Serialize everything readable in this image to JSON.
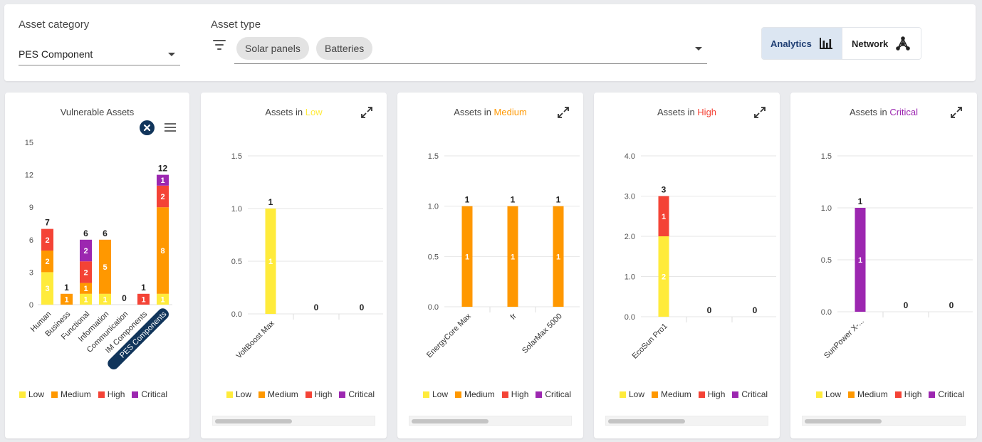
{
  "filters": {
    "asset_category": {
      "label": "Asset category",
      "value": "PES Component"
    },
    "asset_type": {
      "label": "Asset type",
      "chips": [
        "Solar panels",
        "Batteries"
      ]
    },
    "view_toggle": {
      "analytics": "Analytics",
      "network": "Network"
    }
  },
  "legend": [
    {
      "label": "Low",
      "color": "#ffeb3b"
    },
    {
      "label": "Medium",
      "color": "#ff9800"
    },
    {
      "label": "High",
      "color": "#f44336"
    },
    {
      "label": "Critical",
      "color": "#9c27b0"
    }
  ],
  "colors": {
    "low": "#ffeb3b",
    "medium": "#ff9800",
    "high": "#f44336",
    "critical": "#9c27b0",
    "accent": "#11355b"
  },
  "cards": [
    {
      "title_prefix": "Vulnerable Assets",
      "title_level": "",
      "title_color": "#444444",
      "chart_data": {
        "type": "bar",
        "stacked": true,
        "title": "Vulnerable Assets",
        "categories": [
          "Human",
          "Business",
          "Functional",
          "Information",
          "Communication",
          "IM Components",
          "PES Components"
        ],
        "selected_category": "PES Components",
        "series": [
          {
            "name": "Low",
            "values": [
              3,
              0,
              1,
              1,
              0,
              0,
              1
            ]
          },
          {
            "name": "Medium",
            "values": [
              2,
              1,
              1,
              5,
              0,
              0,
              8
            ]
          },
          {
            "name": "High",
            "values": [
              2,
              0,
              2,
              0,
              0,
              1,
              2
            ]
          },
          {
            "name": "Critical",
            "values": [
              0,
              0,
              2,
              0,
              0,
              0,
              1
            ]
          }
        ],
        "totals": [
          7,
          1,
          6,
          6,
          0,
          1,
          12
        ],
        "ylim": [
          0,
          15
        ],
        "yticks": [
          "0",
          "3",
          "6",
          "9",
          "12",
          "15"
        ]
      }
    },
    {
      "title_prefix": "Assets in ",
      "title_level": "Low",
      "title_color": "#ffeb3b",
      "chart_data": {
        "type": "bar",
        "stacked": true,
        "categories": [
          "VoltBoost Max",
          "",
          ""
        ],
        "series": [
          {
            "name": "Low",
            "values": [
              1,
              0,
              0
            ]
          }
        ],
        "totals": [
          1,
          0,
          0
        ],
        "ylim": [
          0,
          1.5
        ],
        "yticks": [
          "0.0",
          "0.5",
          "1.0",
          "1.5"
        ]
      }
    },
    {
      "title_prefix": "Assets in ",
      "title_level": "Medium",
      "title_color": "#ff9800",
      "chart_data": {
        "type": "bar",
        "stacked": true,
        "categories": [
          "EnergyCore Max",
          "fr",
          "SolarMax 5000"
        ],
        "series": [
          {
            "name": "Medium",
            "values": [
              1,
              1,
              1
            ]
          }
        ],
        "totals": [
          1,
          1,
          1
        ],
        "ylim": [
          0,
          1.5
        ],
        "yticks": [
          "0.0",
          "0.5",
          "1.0",
          "1.5"
        ]
      }
    },
    {
      "title_prefix": "Assets in ",
      "title_level": "High",
      "title_color": "#f44336",
      "chart_data": {
        "type": "bar",
        "stacked": true,
        "categories": [
          "EcoSun Pro1",
          "",
          ""
        ],
        "series": [
          {
            "name": "Low",
            "values": [
              2,
              0,
              0
            ]
          },
          {
            "name": "High",
            "values": [
              1,
              0,
              0
            ]
          }
        ],
        "totals": [
          3,
          0,
          0
        ],
        "ylim": [
          0,
          4
        ],
        "yticks": [
          "0.0",
          "1.0",
          "2.0",
          "3.0",
          "4.0"
        ]
      }
    },
    {
      "title_prefix": "Assets in ",
      "title_level": "Critical",
      "title_color": "#9c27b0",
      "chart_data": {
        "type": "bar",
        "stacked": true,
        "categories": [
          "SunPower X-...",
          "",
          ""
        ],
        "series": [
          {
            "name": "Critical",
            "values": [
              1,
              0,
              0
            ]
          }
        ],
        "totals": [
          1,
          0,
          0
        ],
        "ylim": [
          0,
          1.5
        ],
        "yticks": [
          "0.0",
          "0.5",
          "1.0",
          "1.5"
        ]
      }
    }
  ]
}
